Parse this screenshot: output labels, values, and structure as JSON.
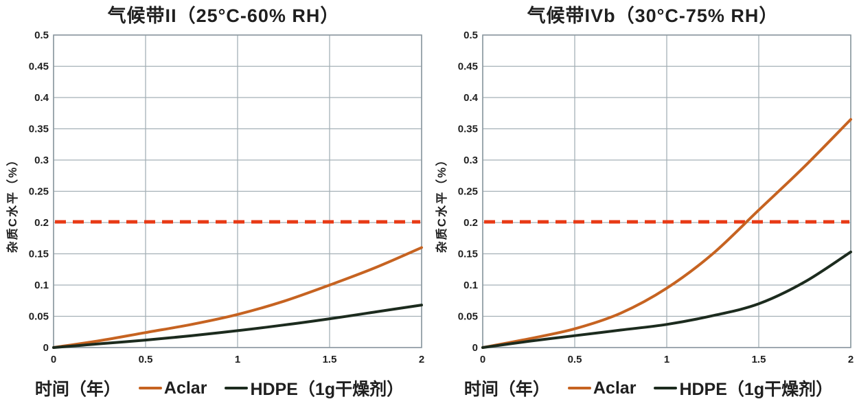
{
  "palette": {
    "background": "#ffffff",
    "text": "#1f1f1f",
    "grid": "#a4b0b6",
    "axis_border": "#8b98a0",
    "aclar": "#c66321",
    "hdpe": "#1c2b1e",
    "threshold": "#e83a15"
  },
  "chart_data": [
    {
      "type": "line",
      "title": "气候带II（25°C-60% RH）",
      "xlabel": "时间（年）",
      "ylabel": "杂质C水平（%）",
      "xlim": [
        0,
        2
      ],
      "ylim": [
        0,
        0.5
      ],
      "grid": true,
      "legend_position": "bottom",
      "x_tick_labels": [
        "0",
        "0.5",
        "1",
        "1.5",
        "2"
      ],
      "y_tick_labels": [
        "0",
        "0.05",
        "0.1",
        "0.15",
        "0.2",
        "0.25",
        "0.3",
        "0.35",
        "0.4",
        "0.45",
        "0.5"
      ],
      "x": [
        0,
        0.25,
        0.5,
        0.75,
        1,
        1.25,
        1.5,
        1.75,
        2
      ],
      "series": [
        {
          "name": "Aclar",
          "color": "#c66321",
          "values": [
            0,
            0.011,
            0.024,
            0.037,
            0.053,
            0.074,
            0.1,
            0.128,
            0.16
          ]
        },
        {
          "name": "HDPE（1g干燥剂）",
          "color": "#1c2b1e",
          "values": [
            0,
            0.006,
            0.012,
            0.019,
            0.027,
            0.036,
            0.046,
            0.057,
            0.068
          ]
        }
      ],
      "threshold": {
        "y": 0.2,
        "style": "dashed",
        "color": "#e83a15"
      }
    },
    {
      "type": "line",
      "title": "气候带IVb（30°C-75% RH）",
      "xlabel": "时间（年）",
      "ylabel": "杂质C水平（%）",
      "xlim": [
        0,
        2
      ],
      "ylim": [
        0,
        0.5
      ],
      "grid": true,
      "legend_position": "bottom",
      "x_tick_labels": [
        "0",
        "0.5",
        "1",
        "1.5",
        "2"
      ],
      "y_tick_labels": [
        "0",
        "0.05",
        "0.1",
        "0.15",
        "0.2",
        "0.25",
        "0.3",
        "0.35",
        "0.4",
        "0.45",
        "0.5"
      ],
      "x": [
        0,
        0.25,
        0.5,
        0.75,
        1,
        1.25,
        1.5,
        1.75,
        2
      ],
      "series": [
        {
          "name": "Aclar",
          "color": "#c66321",
          "values": [
            0,
            0.014,
            0.03,
            0.055,
            0.095,
            0.15,
            0.22,
            0.29,
            0.365
          ]
        },
        {
          "name": "HDPE（1g干燥剂）",
          "color": "#1c2b1e",
          "values": [
            0,
            0.01,
            0.019,
            0.028,
            0.037,
            0.051,
            0.07,
            0.105,
            0.153
          ]
        }
      ],
      "threshold": {
        "y": 0.2,
        "style": "dashed",
        "color": "#e83a15"
      }
    }
  ]
}
